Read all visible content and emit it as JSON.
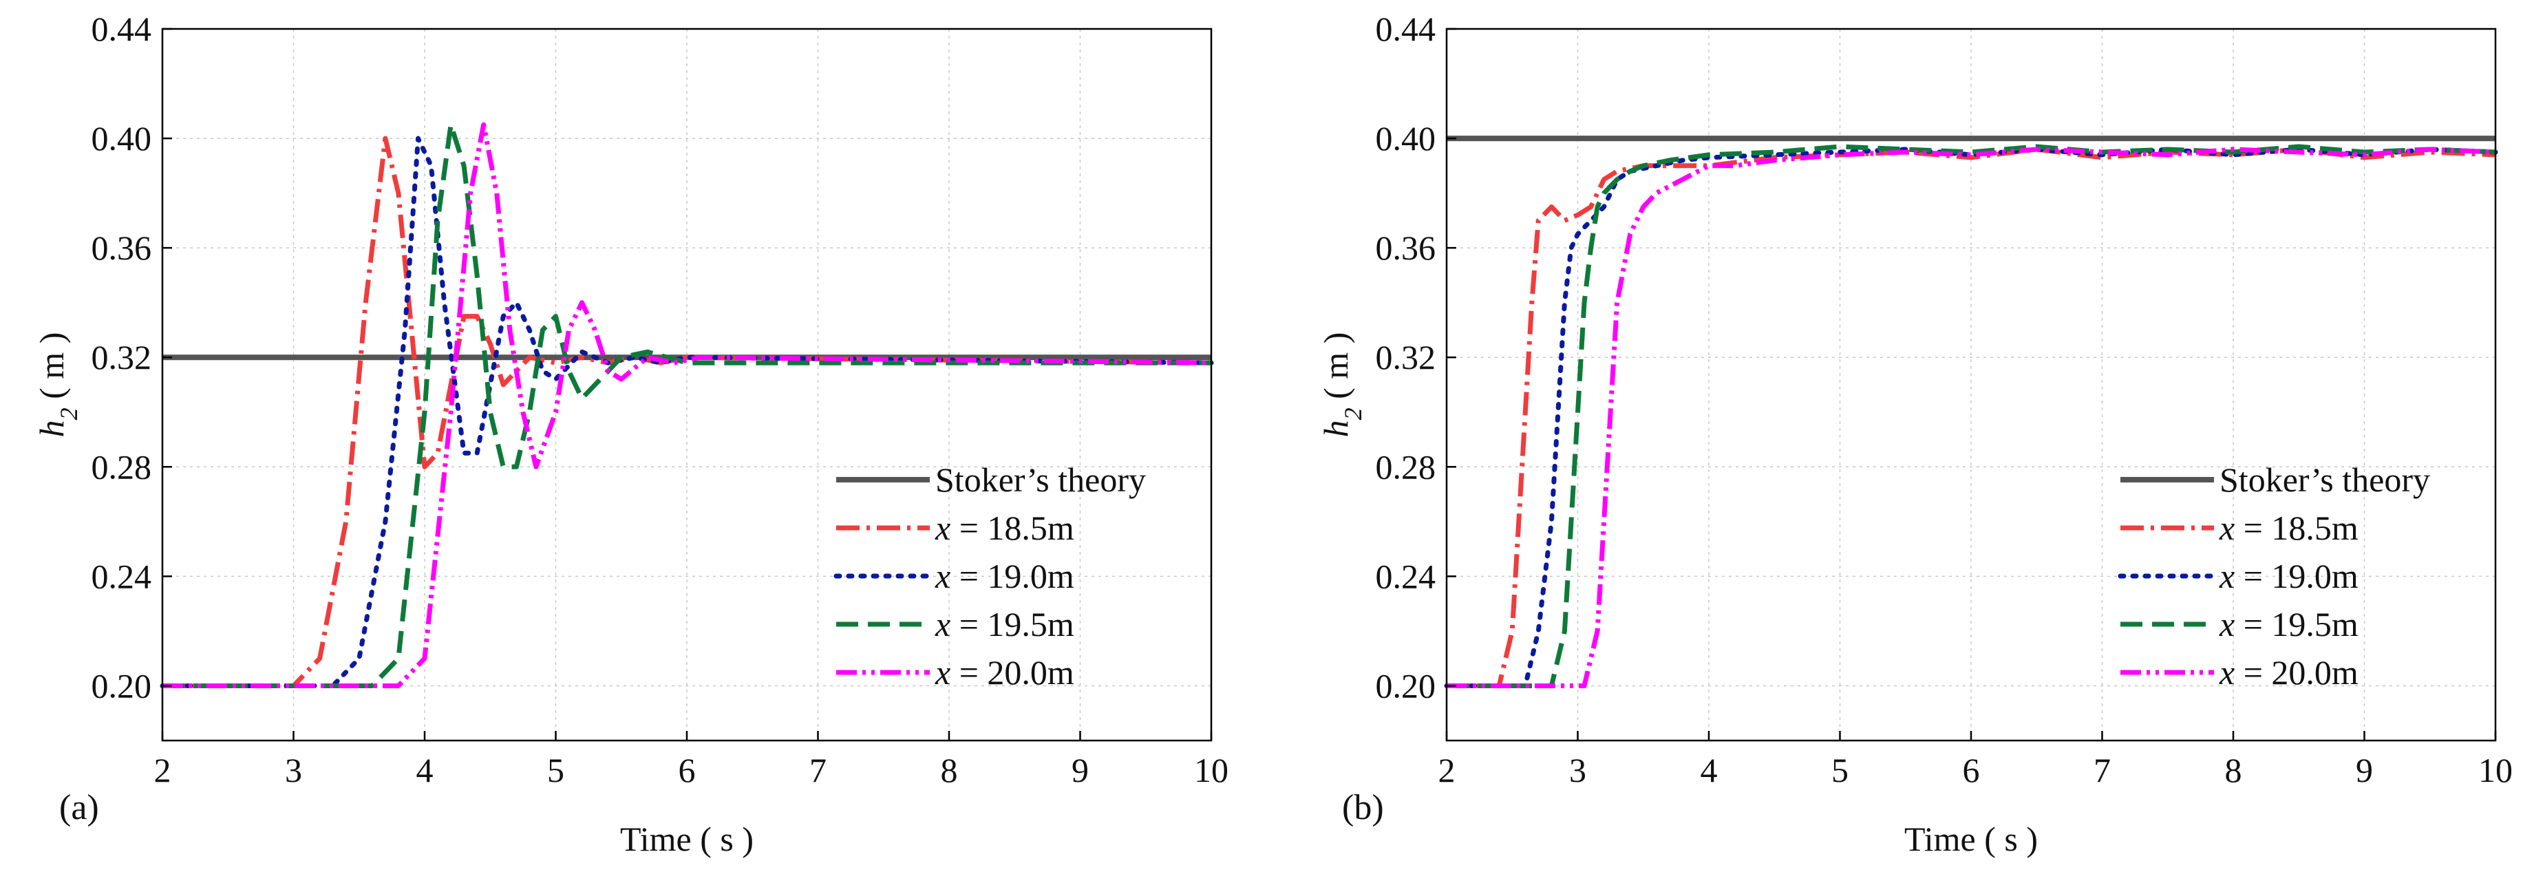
{
  "figure": {
    "x_title": "Time ( s )",
    "y_title_var": "h",
    "y_title_sub": "2",
    "y_title_unit": " ( m )"
  },
  "chart_data": [
    {
      "type": "line",
      "panel": "(a)",
      "title": "",
      "xlabel": "Time ( s )",
      "ylabel": "h2 ( m )",
      "xlim": [
        2,
        10
      ],
      "ylim": [
        0.18,
        0.44
      ],
      "xticks": [
        "2",
        "3",
        "4",
        "5",
        "6",
        "7",
        "8",
        "9",
        "10"
      ],
      "yticks": [
        "0.20",
        "0.24",
        "0.28",
        "0.32",
        "0.36",
        "0.40",
        "0.44"
      ],
      "grid": true,
      "legend_position": "bottom-right",
      "series": [
        {
          "name": "Stoker’s theory",
          "italic_prefix": "",
          "label_suffix": "Stoker’s theory",
          "color": "#555555",
          "style": "solid",
          "x": [
            2,
            10
          ],
          "y": [
            0.32,
            0.32
          ]
        },
        {
          "name": "x = 18.5m",
          "italic_prefix": "x",
          "label_suffix": " = 18.5m",
          "color": "#f03c3c",
          "style": "dashdot",
          "x": [
            2,
            3.0,
            3.2,
            3.4,
            3.55,
            3.7,
            3.8,
            3.9,
            4.0,
            4.1,
            4.2,
            4.3,
            4.4,
            4.5,
            4.6,
            4.7,
            4.8,
            5.0,
            5.2,
            5.4,
            5.6,
            5.8,
            6.0,
            10
          ],
          "y": [
            0.2,
            0.2,
            0.21,
            0.26,
            0.34,
            0.4,
            0.38,
            0.33,
            0.28,
            0.285,
            0.31,
            0.335,
            0.335,
            0.325,
            0.31,
            0.315,
            0.32,
            0.318,
            0.32,
            0.318,
            0.32,
            0.318,
            0.32,
            0.318
          ]
        },
        {
          "name": "x = 19.0m",
          "italic_prefix": "x",
          "label_suffix": " = 19.0m",
          "color": "#0a1a9e",
          "style": "dotted",
          "x": [
            2,
            3.3,
            3.5,
            3.7,
            3.85,
            3.95,
            4.05,
            4.15,
            4.3,
            4.4,
            4.5,
            4.6,
            4.7,
            4.8,
            4.9,
            5.0,
            5.2,
            5.4,
            5.6,
            5.8,
            6.0,
            10
          ],
          "y": [
            0.2,
            0.2,
            0.21,
            0.26,
            0.33,
            0.4,
            0.39,
            0.34,
            0.285,
            0.285,
            0.31,
            0.335,
            0.34,
            0.33,
            0.315,
            0.312,
            0.322,
            0.318,
            0.32,
            0.318,
            0.32,
            0.318
          ]
        },
        {
          "name": "x = 19.5m",
          "italic_prefix": "x",
          "label_suffix": " = 19.5m",
          "color": "#0e7a3a",
          "style": "dashed",
          "x": [
            2,
            3.6,
            3.8,
            4.0,
            4.1,
            4.2,
            4.3,
            4.4,
            4.5,
            4.6,
            4.7,
            4.8,
            4.9,
            5.0,
            5.1,
            5.2,
            5.3,
            5.5,
            5.7,
            6.0,
            10
          ],
          "y": [
            0.2,
            0.2,
            0.21,
            0.3,
            0.37,
            0.405,
            0.39,
            0.35,
            0.3,
            0.28,
            0.28,
            0.3,
            0.33,
            0.335,
            0.315,
            0.305,
            0.31,
            0.32,
            0.322,
            0.318,
            0.318
          ]
        },
        {
          "name": "x = 20.0m",
          "italic_prefix": "x",
          "label_suffix": " = 20.0m",
          "color": "#ff00ff",
          "style": "dashdotdot",
          "x": [
            2,
            3.8,
            4.0,
            4.2,
            4.35,
            4.45,
            4.55,
            4.65,
            4.75,
            4.85,
            5.0,
            5.1,
            5.2,
            5.3,
            5.4,
            5.5,
            5.7,
            5.9,
            6.1,
            10
          ],
          "y": [
            0.2,
            0.2,
            0.21,
            0.3,
            0.38,
            0.405,
            0.38,
            0.33,
            0.3,
            0.28,
            0.3,
            0.33,
            0.34,
            0.33,
            0.315,
            0.312,
            0.32,
            0.318,
            0.32,
            0.318
          ]
        }
      ]
    },
    {
      "type": "line",
      "panel": "(b)",
      "title": "",
      "xlabel": "Time ( s )",
      "ylabel": "h2 ( m )",
      "xlim": [
        2,
        10
      ],
      "ylim": [
        0.18,
        0.44
      ],
      "xticks": [
        "2",
        "3",
        "4",
        "5",
        "6",
        "7",
        "8",
        "9",
        "10"
      ],
      "yticks": [
        "0.20",
        "0.24",
        "0.28",
        "0.32",
        "0.36",
        "0.40",
        "0.44"
      ],
      "grid": true,
      "legend_position": "bottom-right",
      "series": [
        {
          "name": "Stoker’s theory",
          "italic_prefix": "",
          "label_suffix": "Stoker’s theory",
          "color": "#555555",
          "style": "solid",
          "x": [
            2,
            10
          ],
          "y": [
            0.4,
            0.4
          ]
        },
        {
          "name": "x = 18.5m",
          "italic_prefix": "x",
          "label_suffix": " = 18.5m",
          "color": "#f03c3c",
          "style": "dashdot",
          "x": [
            2,
            2.4,
            2.5,
            2.55,
            2.6,
            2.65,
            2.7,
            2.8,
            2.9,
            3.0,
            3.1,
            3.2,
            3.3,
            3.5,
            3.8,
            4.0,
            4.5,
            5.0,
            5.5,
            6.0,
            6.5,
            7.0,
            7.5,
            8.0,
            8.5,
            9.0,
            9.5,
            10
          ],
          "y": [
            0.2,
            0.2,
            0.22,
            0.26,
            0.3,
            0.34,
            0.37,
            0.375,
            0.37,
            0.372,
            0.375,
            0.385,
            0.388,
            0.39,
            0.39,
            0.39,
            0.393,
            0.394,
            0.395,
            0.393,
            0.396,
            0.393,
            0.395,
            0.394,
            0.396,
            0.393,
            0.395,
            0.394
          ]
        },
        {
          "name": "x = 19.0m",
          "italic_prefix": "x",
          "label_suffix": " = 19.0m",
          "color": "#0a1a9e",
          "style": "dotted",
          "x": [
            2,
            2.6,
            2.7,
            2.8,
            2.85,
            2.9,
            2.95,
            3.0,
            3.1,
            3.2,
            3.3,
            3.4,
            3.6,
            3.8,
            4.0,
            4.5,
            5.0,
            5.5,
            6.0,
            6.5,
            7.0,
            7.5,
            8.0,
            8.5,
            9.0,
            9.5,
            10
          ],
          "y": [
            0.2,
            0.2,
            0.22,
            0.26,
            0.3,
            0.34,
            0.36,
            0.365,
            0.37,
            0.375,
            0.385,
            0.388,
            0.39,
            0.392,
            0.393,
            0.394,
            0.395,
            0.396,
            0.394,
            0.396,
            0.394,
            0.396,
            0.394,
            0.396,
            0.394,
            0.396,
            0.395
          ]
        },
        {
          "name": "x = 19.5m",
          "italic_prefix": "x",
          "label_suffix": " = 19.5m",
          "color": "#0e7a3a",
          "style": "dashed",
          "x": [
            2,
            2.8,
            2.9,
            2.95,
            3.0,
            3.05,
            3.1,
            3.15,
            3.2,
            3.3,
            3.4,
            3.5,
            3.7,
            4.0,
            4.5,
            5.0,
            5.5,
            6.0,
            6.5,
            7.0,
            7.5,
            8.0,
            8.5,
            9.0,
            9.5,
            10
          ],
          "y": [
            0.2,
            0.2,
            0.22,
            0.26,
            0.3,
            0.34,
            0.36,
            0.375,
            0.38,
            0.385,
            0.388,
            0.39,
            0.392,
            0.394,
            0.395,
            0.397,
            0.396,
            0.395,
            0.397,
            0.395,
            0.396,
            0.395,
            0.397,
            0.395,
            0.396,
            0.395
          ]
        },
        {
          "name": "x = 20.0m",
          "italic_prefix": "x",
          "label_suffix": " = 20.0m",
          "color": "#ff00ff",
          "style": "dashdotdot",
          "x": [
            2,
            3.05,
            3.15,
            3.2,
            3.25,
            3.3,
            3.4,
            3.5,
            3.6,
            3.8,
            4.0,
            4.2,
            4.5,
            5.0,
            5.5,
            6.0,
            6.5,
            7.0,
            7.5,
            8.0,
            8.5,
            9.0,
            9.5,
            10
          ],
          "y": [
            0.2,
            0.2,
            0.22,
            0.26,
            0.3,
            0.34,
            0.365,
            0.375,
            0.38,
            0.385,
            0.39,
            0.39,
            0.392,
            0.394,
            0.395,
            0.394,
            0.396,
            0.395,
            0.394,
            0.396,
            0.395,
            0.394,
            0.396,
            0.395
          ]
        }
      ]
    }
  ]
}
